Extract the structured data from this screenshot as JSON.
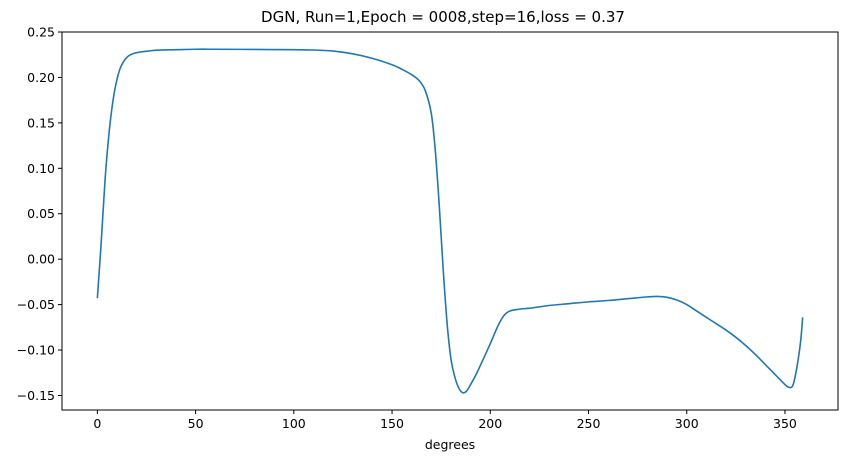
{
  "chart_data": {
    "type": "line",
    "title": "DGN, Run=1,Epoch = 0008,step=16,loss = 0.37",
    "xlabel": "degrees",
    "ylabel": "",
    "xlim": [
      -18,
      377
    ],
    "ylim": [
      -0.166,
      0.25
    ],
    "xticks": [
      0,
      50,
      100,
      150,
      200,
      250,
      300,
      350
    ],
    "xtick_labels": [
      "0",
      "50",
      "100",
      "150",
      "200",
      "250",
      "300",
      "350"
    ],
    "yticks": [
      0.25,
      0.2,
      0.15,
      0.1,
      0.05,
      0.0,
      -0.05,
      -0.1,
      -0.15
    ],
    "ytick_labels": [
      "0.25",
      "0.20",
      "0.15",
      "0.10",
      "0.05",
      "0.00",
      "−0.05",
      "−0.10",
      "−0.15"
    ],
    "grid": false,
    "series": [
      {
        "color": "#1f77b4",
        "x": [
          0,
          2,
          4,
          6,
          8,
          10,
          12,
          15,
          18,
          22,
          26,
          30,
          40,
          50,
          60,
          80,
          100,
          110,
          120,
          130,
          140,
          150,
          155,
          160,
          164,
          167,
          170,
          172,
          174,
          176,
          178,
          180,
          182,
          184,
          186,
          188,
          190,
          193,
          196,
          200,
          204,
          207,
          210,
          215,
          220,
          230,
          240,
          250,
          260,
          270,
          280,
          285,
          290,
          295,
          300,
          305,
          310,
          315,
          320,
          325,
          330,
          335,
          340,
          345,
          350,
          352,
          354,
          356,
          358,
          359
        ],
        "y": [
          -0.043,
          0.02,
          0.09,
          0.14,
          0.175,
          0.198,
          0.212,
          0.222,
          0.226,
          0.228,
          0.229,
          0.23,
          0.2305,
          0.231,
          0.231,
          0.2308,
          0.2305,
          0.2302,
          0.229,
          0.226,
          0.221,
          0.214,
          0.209,
          0.203,
          0.196,
          0.185,
          0.16,
          0.12,
          0.06,
          -0.01,
          -0.07,
          -0.11,
          -0.13,
          -0.142,
          -0.147,
          -0.145,
          -0.138,
          -0.126,
          -0.112,
          -0.093,
          -0.073,
          -0.062,
          -0.057,
          -0.055,
          -0.054,
          -0.051,
          -0.049,
          -0.047,
          -0.0455,
          -0.0435,
          -0.0415,
          -0.041,
          -0.042,
          -0.045,
          -0.05,
          -0.057,
          -0.064,
          -0.071,
          -0.078,
          -0.086,
          -0.095,
          -0.105,
          -0.116,
          -0.127,
          -0.138,
          -0.141,
          -0.139,
          -0.12,
          -0.09,
          -0.064
        ]
      }
    ]
  }
}
